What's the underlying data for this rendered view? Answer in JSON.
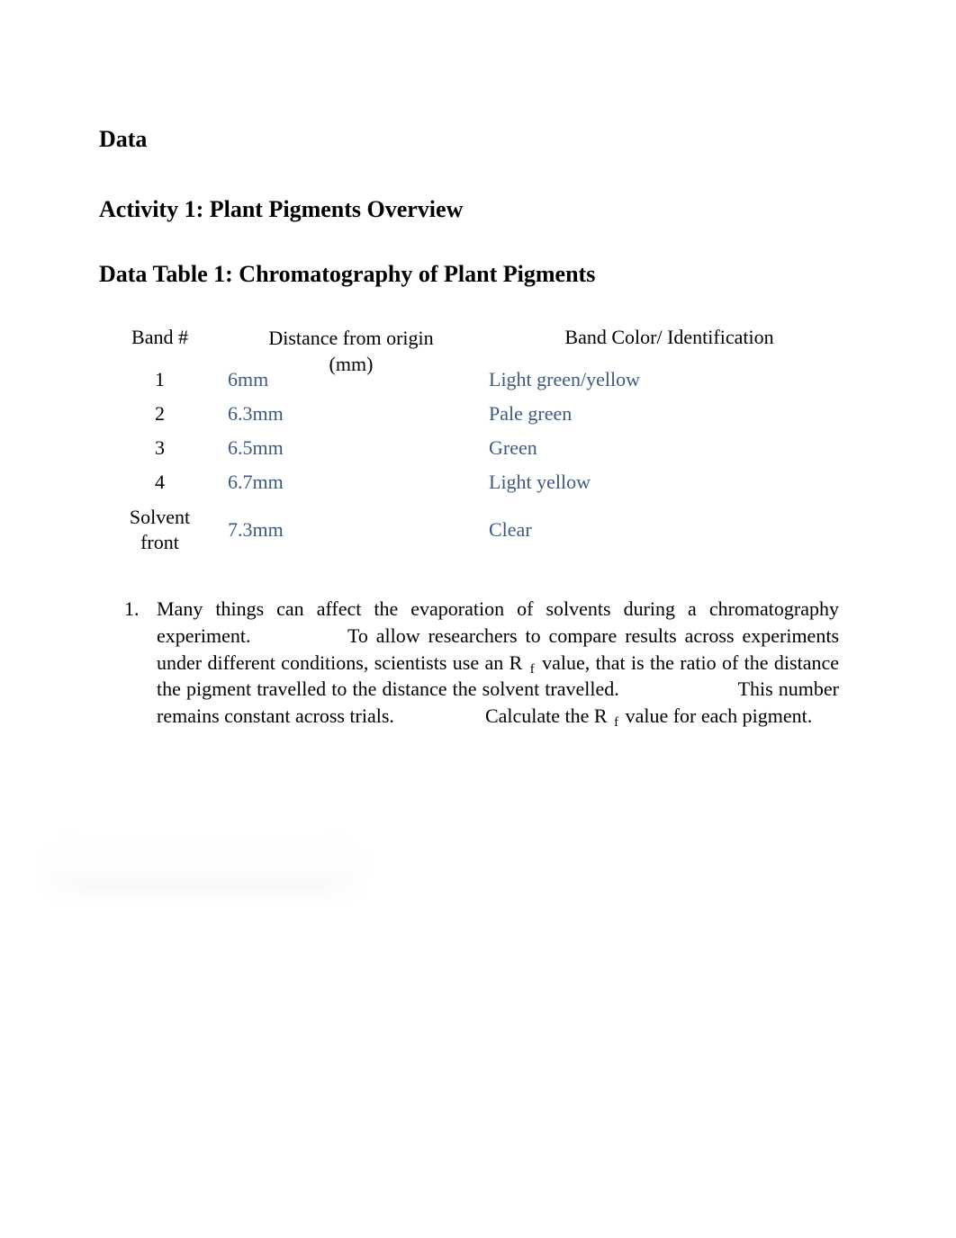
{
  "headings": {
    "data": "Data",
    "activity": "Activity 1: Plant Pigments Overview",
    "tableTitle": "Data Table 1: Chromatography of Plant Pigments"
  },
  "table": {
    "headers": {
      "band": "Band #",
      "distanceLine1": "Distance from origin",
      "distanceLine2": "(mm)",
      "color": "Band Color/ Identification"
    },
    "rows": [
      {
        "band": "1",
        "distance": "6mm",
        "color": "Light green/yellow"
      },
      {
        "band": "2",
        "distance": "6.3mm",
        "color": "Pale green"
      },
      {
        "band": "3",
        "distance": "6.5mm",
        "color": "Green"
      },
      {
        "band": "4",
        "distance": "6.7mm",
        "color": "Light yellow"
      }
    ],
    "solventRow": {
      "bandLine1": "Solvent",
      "bandLine2": "front",
      "distance": "7.3mm",
      "color": "Clear"
    }
  },
  "question": {
    "number": "1.",
    "seg1": "Many things can affect the evaporation of solvents during a chromatography experiment.",
    "seg2": "To allow researchers to compare results across experiments under different conditions, scientists use an R",
    "sub1": "f",
    "seg3": " value, that is the ratio of the distance the pigment travelled to the distance the solvent travelled.",
    "seg4": "This number remains constant across trials.",
    "seg5": "Calculate the R",
    "sub2": "f",
    "seg6": " value for each pigment."
  },
  "colors": {
    "text": "#000000",
    "dataValue": "#3d5a80",
    "background": "#ffffff"
  },
  "spacing": {
    "gap1": "90px",
    "gap2": "120px",
    "gap3": "90px"
  }
}
